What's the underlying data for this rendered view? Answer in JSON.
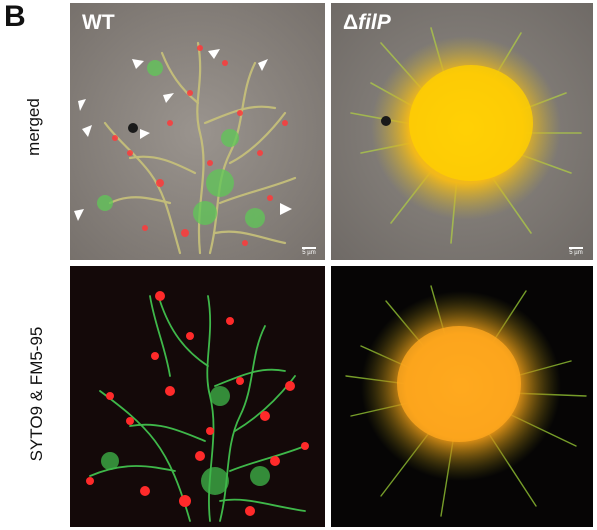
{
  "panel_letter": "B",
  "rows": [
    {
      "label": "merged"
    },
    {
      "label": "SYTO9 & FM5-95"
    }
  ],
  "columns": [
    {
      "title_prefix": "",
      "title_italic": "WT"
    },
    {
      "title_prefix": "Δ",
      "title_italic": "filP"
    }
  ],
  "scale_bar_text": "5 µm",
  "colors": {
    "green": "#4fd04a",
    "red": "#ff3030",
    "yellow": "#ffc400",
    "merged_bg": "#8b8580",
    "dark_bg": "#120808"
  }
}
